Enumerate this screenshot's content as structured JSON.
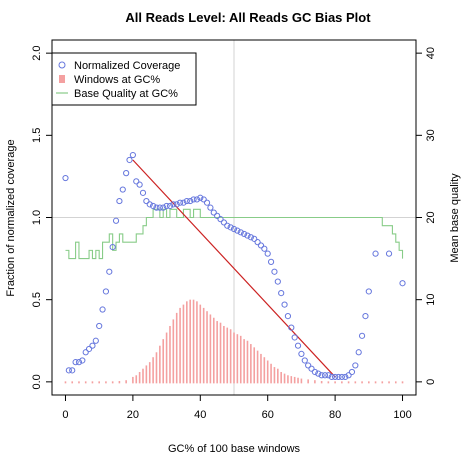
{
  "chart_data": {
    "type": "scatter",
    "title": "All Reads Level: All Reads GC Bias Plot",
    "xlabel": "GC% of 100 base windows",
    "ylabel": "Fraction of normalized coverage",
    "y2label": "Mean base quality",
    "xlim": [
      -4,
      104
    ],
    "ylim": [
      -0.08,
      2.08
    ],
    "y2lim": [
      -1.6,
      41.6
    ],
    "xticks": [
      "0",
      "20",
      "40",
      "60",
      "80",
      "100"
    ],
    "yticks": [
      "0.0",
      "0.5",
      "1.0",
      "1.5",
      "2.0"
    ],
    "y2ticks": [
      "0",
      "10",
      "20",
      "30",
      "40"
    ],
    "reference_lines": {
      "vertical_x": 50,
      "horizontal_y": 1.0
    },
    "legend": {
      "position": "top-left",
      "entries": [
        "Normalized Coverage",
        "Windows at GC%",
        "Base Quality at GC%"
      ]
    },
    "colors": {
      "coverage": "#6677dd",
      "windows": "#f4a0a0",
      "quality": "#88cc88",
      "trend": "#cc2222",
      "refline": "#d3d3d3"
    },
    "series": [
      {
        "name": "Normalized Coverage",
        "x": [
          0,
          1,
          2,
          3,
          4,
          5,
          6,
          7,
          8,
          9,
          10,
          11,
          12,
          13,
          14,
          15,
          16,
          17,
          18,
          19,
          20,
          21,
          22,
          23,
          24,
          25,
          26,
          27,
          28,
          29,
          30,
          31,
          32,
          33,
          34,
          35,
          36,
          37,
          38,
          39,
          40,
          41,
          42,
          43,
          44,
          45,
          46,
          47,
          48,
          49,
          50,
          51,
          52,
          53,
          54,
          55,
          56,
          57,
          58,
          59,
          60,
          61,
          62,
          63,
          64,
          65,
          66,
          67,
          68,
          69,
          70,
          71,
          72,
          73,
          74,
          75,
          76,
          77,
          78,
          79,
          80,
          81,
          82,
          83,
          84,
          85,
          86,
          87,
          88,
          89,
          90,
          92,
          96,
          100
        ],
        "y": [
          1.24,
          0.07,
          0.07,
          0.12,
          0.12,
          0.13,
          0.18,
          0.2,
          0.22,
          0.25,
          0.34,
          0.44,
          0.55,
          0.67,
          0.82,
          0.98,
          1.1,
          1.17,
          1.27,
          1.35,
          1.38,
          1.22,
          1.2,
          1.15,
          1.1,
          1.08,
          1.07,
          1.06,
          1.06,
          1.06,
          1.07,
          1.07,
          1.08,
          1.08,
          1.09,
          1.09,
          1.1,
          1.1,
          1.11,
          1.11,
          1.12,
          1.11,
          1.09,
          1.06,
          1.03,
          1.01,
          0.99,
          0.97,
          0.95,
          0.94,
          0.93,
          0.92,
          0.91,
          0.9,
          0.89,
          0.88,
          0.87,
          0.85,
          0.83,
          0.81,
          0.78,
          0.73,
          0.67,
          0.61,
          0.54,
          0.47,
          0.4,
          0.33,
          0.27,
          0.22,
          0.17,
          0.13,
          0.1,
          0.08,
          0.06,
          0.05,
          0.04,
          0.04,
          0.04,
          0.03,
          0.03,
          0.03,
          0.03,
          0.03,
          0.04,
          0.06,
          0.1,
          0.18,
          0.28,
          0.4,
          0.55,
          0.78,
          0.78,
          0.6
        ]
      },
      {
        "name": "Windows at GC%",
        "x": [
          0,
          2,
          4,
          6,
          8,
          10,
          12,
          14,
          16,
          18,
          20,
          21,
          22,
          23,
          24,
          25,
          26,
          27,
          28,
          29,
          30,
          31,
          32,
          33,
          34,
          35,
          36,
          37,
          38,
          39,
          40,
          41,
          42,
          43,
          44,
          45,
          46,
          47,
          48,
          49,
          50,
          51,
          52,
          53,
          54,
          55,
          56,
          57,
          58,
          59,
          60,
          61,
          62,
          63,
          64,
          65,
          66,
          67,
          68,
          69,
          70,
          72,
          74,
          76,
          78,
          80,
          82,
          84,
          86,
          88,
          90,
          92,
          94,
          96,
          98,
          100
        ],
        "y": [
          0,
          0,
          0,
          0,
          0,
          0,
          0,
          0,
          0.005,
          0.01,
          0.03,
          0.04,
          0.06,
          0.08,
          0.1,
          0.12,
          0.15,
          0.18,
          0.22,
          0.26,
          0.3,
          0.34,
          0.38,
          0.42,
          0.45,
          0.47,
          0.49,
          0.5,
          0.5,
          0.49,
          0.47,
          0.45,
          0.43,
          0.41,
          0.39,
          0.37,
          0.36,
          0.34,
          0.33,
          0.32,
          0.3,
          0.29,
          0.28,
          0.26,
          0.25,
          0.23,
          0.21,
          0.19,
          0.17,
          0.15,
          0.13,
          0.11,
          0.09,
          0.08,
          0.06,
          0.05,
          0.04,
          0.035,
          0.03,
          0.025,
          0.02,
          0.015,
          0.01,
          0.005,
          0.003,
          0.002,
          0.001,
          0,
          0,
          0,
          0,
          0,
          0,
          0,
          0,
          0
        ]
      },
      {
        "name": "Base Quality at GC%",
        "x": [
          0,
          1,
          2,
          3,
          4,
          5,
          6,
          7,
          8,
          9,
          10,
          11,
          12,
          13,
          14,
          15,
          16,
          17,
          18,
          19,
          20,
          21,
          22,
          23,
          24,
          25,
          26,
          27,
          28,
          29,
          30,
          31,
          32,
          33,
          34,
          35,
          36,
          37,
          38,
          39,
          40,
          41,
          42,
          43,
          44,
          45,
          46,
          47,
          48,
          49,
          50,
          51,
          52,
          53,
          54,
          55,
          56,
          57,
          58,
          59,
          60,
          61,
          62,
          63,
          64,
          65,
          66,
          67,
          68,
          69,
          70,
          71,
          72,
          73,
          74,
          75,
          76,
          77,
          78,
          79,
          80,
          81,
          82,
          83,
          84,
          85,
          86,
          87,
          88,
          89,
          90,
          91,
          92,
          93,
          94,
          95,
          96,
          97,
          98,
          99,
          100
        ],
        "y": [
          16,
          15,
          15,
          17,
          15,
          15,
          15,
          16,
          15,
          16,
          15,
          17,
          17,
          18,
          16,
          17,
          18,
          17,
          17,
          17,
          17,
          18,
          18,
          19,
          20,
          20,
          21,
          21,
          20,
          21,
          20,
          21,
          21,
          20,
          20,
          21,
          21,
          20,
          21,
          21,
          20,
          20,
          20,
          20,
          20,
          20,
          20,
          20,
          20,
          20,
          20,
          20,
          20,
          20,
          20,
          20,
          20,
          20,
          20,
          20,
          20,
          20,
          20,
          20,
          20,
          20,
          20,
          20,
          20,
          20,
          20,
          20,
          20,
          20,
          20,
          20,
          20,
          20,
          20,
          20,
          20,
          20,
          20,
          20,
          20,
          20,
          20,
          20,
          20,
          20,
          20,
          20,
          20,
          20,
          19,
          19,
          19,
          18,
          17,
          16,
          15
        ]
      }
    ],
    "trend_line": {
      "x": [
        20,
        80
      ],
      "y": [
        1.35,
        0.03
      ]
    }
  }
}
